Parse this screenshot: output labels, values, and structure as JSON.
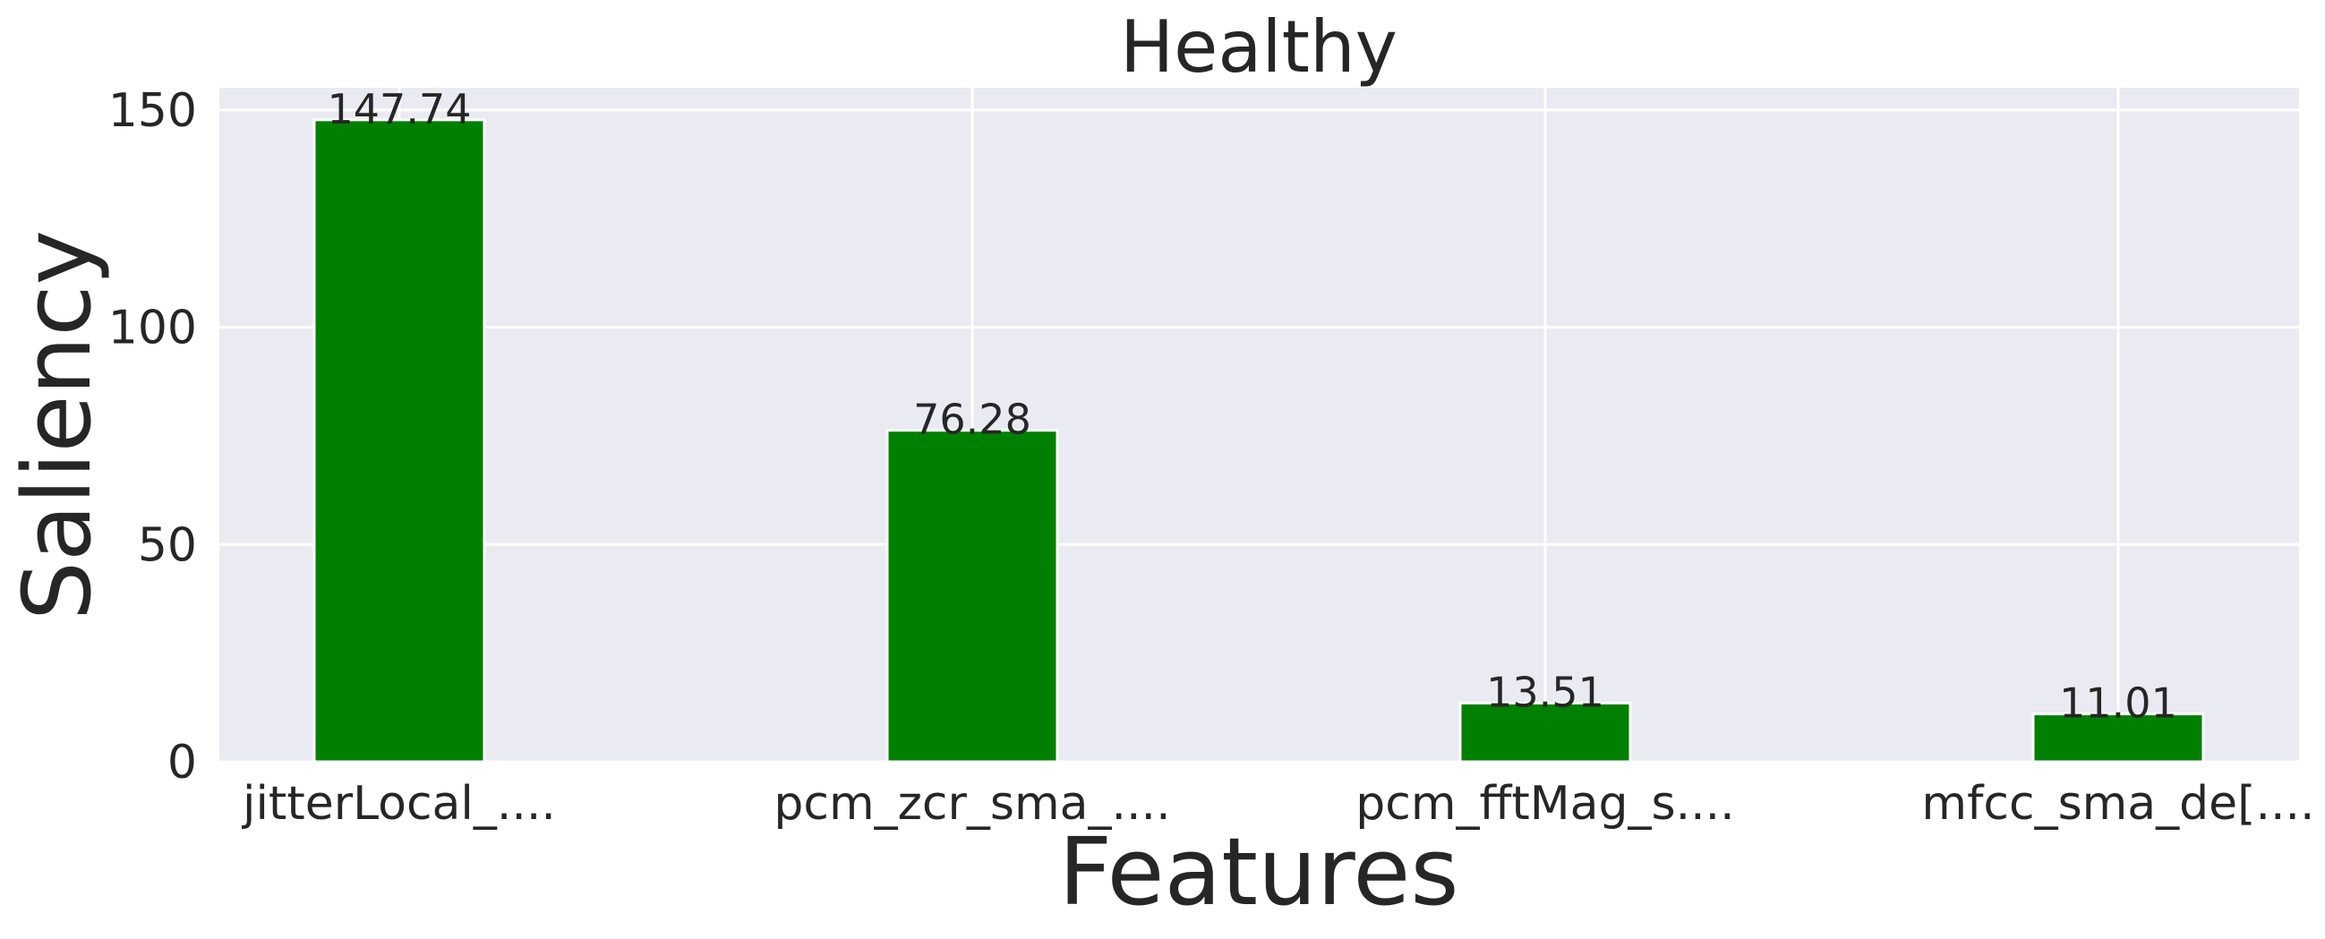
{
  "chart_data": {
    "type": "bar",
    "title": "Healthy",
    "xlabel": "Features",
    "ylabel": "Saliency",
    "categories": [
      "jitterLocal_....",
      "pcm_zcr_sma_....",
      "pcm_fftMag_s....",
      "mfcc_sma_de[...."
    ],
    "values": [
      147.74,
      76.28,
      13.51,
      11.01
    ],
    "data_labels": [
      "147.74",
      "76.28",
      "13.51",
      "11.01"
    ],
    "yticks": [
      0,
      50,
      100,
      150
    ],
    "ytick_labels": [
      "0",
      "50",
      "100",
      "150"
    ],
    "ylim": [
      0,
      155.13
    ],
    "grid": true,
    "colors": {
      "bar": "#008000",
      "plot_background": "#EAEAF2",
      "grid": "#FFFFFF",
      "text": "#262626"
    }
  }
}
